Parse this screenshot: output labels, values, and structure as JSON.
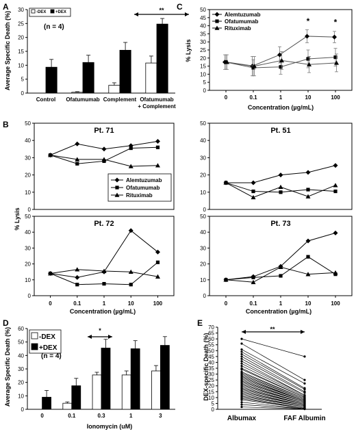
{
  "panels": {
    "A": {
      "label": "A",
      "chart_data": {
        "type": "bar",
        "ylabel": "Average Specific Death (%)",
        "ylim": [
          0,
          30
        ],
        "yticks": [
          0,
          5,
          10,
          15,
          20,
          25,
          30
        ],
        "categories": [
          "Control",
          "Ofatumumab",
          "Complement",
          "Ofatumumab + Complement"
        ],
        "category_lines": [
          [
            "Control"
          ],
          [
            "Ofatumumab"
          ],
          [
            "Complement"
          ],
          [
            "Ofatumumab",
            "+ Complement"
          ]
        ],
        "series": [
          {
            "name": "-DEX",
            "color": "#ffffff",
            "values": [
              0,
              0.3,
              2.8,
              10.8
            ],
            "errors": [
              0,
              0.2,
              0.9,
              2.5
            ]
          },
          {
            "name": "+DEX",
            "color": "#000000",
            "values": [
              9.3,
              11,
              15.4,
              24.8
            ],
            "errors": [
              2.8,
              2.6,
              2.8,
              2.0
            ]
          }
        ],
        "annotation": "(n = 4)",
        "significance": "**",
        "legend_position": "top-left"
      }
    },
    "C": {
      "label": "C",
      "chart_data": {
        "type": "line",
        "ylabel": "% Lysis",
        "xlabel": "Concentration (µg/mL)",
        "ylim": [
          0,
          50
        ],
        "yticks": [
          0,
          5,
          10,
          15,
          20,
          25,
          30,
          35,
          40,
          45,
          50
        ],
        "x": [
          "0",
          "0.1",
          "1",
          "10",
          "100"
        ],
        "series": [
          {
            "name": "Alemtuzumab",
            "marker": "diamond",
            "values": [
              17.5,
              15,
              22,
              33.5,
              33
            ],
            "errors": [
              4.5,
              6,
              5,
              4,
              3.5
            ]
          },
          {
            "name": "Ofatumumab",
            "marker": "square",
            "values": [
              17.5,
              14,
              14.5,
              19.5,
              20.5
            ],
            "errors": [
              4.5,
              5,
              4.5,
              5.5,
              5.5
            ]
          },
          {
            "name": "Rituximab",
            "marker": "triangle",
            "values": [
              17.5,
              15,
              18.5,
              16,
              17
            ],
            "errors": [
              4.5,
              6,
              5.5,
              5,
              5.5
            ]
          }
        ],
        "significance": [
          "*",
          "*"
        ],
        "legend_position": "top-left"
      }
    },
    "B": {
      "label": "B",
      "ylabel": "% Lysis",
      "xlabel": "Concentration (µg/mL)",
      "legend": [
        "Alemtuzumab",
        "Ofatumumab",
        "Rituximab"
      ],
      "chart_data": [
        {
          "type": "line",
          "title": "Pt. 71",
          "x": [
            "0",
            "0.1",
            "1",
            "10",
            "100"
          ],
          "ylim": [
            0,
            50
          ],
          "yticks": [
            0,
            10,
            20,
            30,
            40,
            50
          ],
          "series": [
            {
              "name": "Alemtuzumab",
              "marker": "diamond",
              "values": [
                31.5,
                38,
                35,
                37,
                39.5
              ]
            },
            {
              "name": "Ofatumumab",
              "marker": "square",
              "values": [
                31.5,
                26.5,
                28,
                35.5,
                36
              ]
            },
            {
              "name": "Rituximab",
              "marker": "triangle",
              "values": [
                31.5,
                29,
                29,
                25,
                25.5
              ]
            }
          ]
        },
        {
          "type": "line",
          "title": "Pt. 51",
          "x": [
            "0",
            "0.1",
            "1",
            "10",
            "100"
          ],
          "ylim": [
            0,
            50
          ],
          "yticks": [
            0,
            10,
            20,
            30,
            40,
            50
          ],
          "series": [
            {
              "name": "Alemtuzumab",
              "marker": "diamond",
              "values": [
                15.5,
                15.5,
                20,
                21.5,
                25.5
              ]
            },
            {
              "name": "Ofatumumab",
              "marker": "square",
              "values": [
                15.5,
                10.5,
                10,
                11.5,
                10.5
              ]
            },
            {
              "name": "Rituximab",
              "marker": "triangle",
              "values": [
                15.5,
                7,
                13,
                7.5,
                14
              ]
            }
          ]
        },
        {
          "type": "line",
          "title": "Pt. 72",
          "x": [
            "0",
            "0.1",
            "1",
            "10",
            "100"
          ],
          "ylim": [
            0,
            50
          ],
          "yticks": [
            0,
            10,
            20,
            30,
            40,
            50
          ],
          "series": [
            {
              "name": "Alemtuzumab",
              "marker": "diamond",
              "values": [
                14,
                11.5,
                15,
                41,
                27.5
              ]
            },
            {
              "name": "Ofatumumab",
              "marker": "square",
              "values": [
                14,
                7,
                7.5,
                7,
                21
              ]
            },
            {
              "name": "Rituximab",
              "marker": "triangle",
              "values": [
                14,
                16.5,
                15.5,
                15,
                12
              ]
            }
          ]
        },
        {
          "type": "line",
          "title": "Pt. 73",
          "x": [
            "0",
            "0.1",
            "1",
            "10",
            "100"
          ],
          "ylim": [
            0,
            50
          ],
          "yticks": [
            0,
            10,
            20,
            30,
            40,
            50
          ],
          "series": [
            {
              "name": "Alemtuzumab",
              "marker": "diamond",
              "values": [
                10,
                12,
                18.5,
                34.5,
                39.5
              ]
            },
            {
              "name": "Ofatumumab",
              "marker": "square",
              "values": [
                10,
                11.5,
                12.5,
                24.5,
                13.5
              ]
            },
            {
              "name": "Rituximab",
              "marker": "triangle",
              "values": [
                10,
                8.5,
                18,
                13.5,
                14.5
              ]
            }
          ]
        }
      ]
    },
    "D": {
      "label": "D",
      "chart_data": {
        "type": "bar",
        "ylabel": "Average Specific Death (%)",
        "xlabel": "Ionomycin (uM)",
        "ylim": [
          0,
          60
        ],
        "yticks": [
          0,
          10,
          20,
          30,
          40,
          50,
          60
        ],
        "categories": [
          "0",
          "0.1",
          "0.3",
          "1",
          "3"
        ],
        "series": [
          {
            "name": "-DEX",
            "color": "#ffffff",
            "values": [
              0,
              4.5,
              25.5,
              25.5,
              28.5
            ],
            "errors": [
              0,
              1,
              2,
              3,
              4
            ]
          },
          {
            "name": "+DEX",
            "color": "#000000",
            "values": [
              9,
              17.5,
              45.5,
              45,
              47.5
            ],
            "errors": [
              5,
              5.5,
              6.5,
              6,
              6.5
            ]
          }
        ],
        "annotation": "(n = 4)",
        "significance": "*",
        "legend_position": "top-left"
      }
    },
    "E": {
      "label": "E",
      "chart_data": {
        "type": "line",
        "ylabel": "DEX-specific Death (%)",
        "categories": [
          "Albumax",
          "FAF Albumin"
        ],
        "ylim": [
          0,
          70
        ],
        "yticks": [
          0,
          5,
          10,
          15,
          20,
          25,
          30,
          35,
          40,
          45,
          50,
          55,
          60,
          65,
          70
        ],
        "pairs": [
          [
            60,
            45
          ],
          [
            56,
            25
          ],
          [
            51,
            22
          ],
          [
            49,
            18
          ],
          [
            47,
            17
          ],
          [
            45,
            15
          ],
          [
            43,
            14
          ],
          [
            41,
            12
          ],
          [
            39,
            12
          ],
          [
            37,
            11
          ],
          [
            35,
            10
          ],
          [
            34,
            10
          ],
          [
            32,
            9
          ],
          [
            31,
            9
          ],
          [
            30,
            8
          ],
          [
            29,
            8
          ],
          [
            28,
            7
          ],
          [
            27,
            7
          ],
          [
            26,
            7
          ],
          [
            25,
            6
          ],
          [
            24,
            6
          ],
          [
            23,
            6
          ],
          [
            22,
            5
          ],
          [
            21,
            5
          ],
          [
            20,
            5
          ],
          [
            19,
            4
          ],
          [
            18,
            4
          ],
          [
            17,
            4
          ],
          [
            16,
            3
          ],
          [
            15,
            3
          ],
          [
            14,
            3
          ],
          [
            13,
            2
          ],
          [
            12,
            2
          ],
          [
            11,
            2
          ],
          [
            10,
            1
          ],
          [
            9,
            1
          ],
          [
            8,
            1
          ],
          [
            6,
            0.5
          ],
          [
            4,
            0.5
          ],
          [
            2,
            0.2
          ]
        ],
        "significance": "**"
      }
    }
  }
}
